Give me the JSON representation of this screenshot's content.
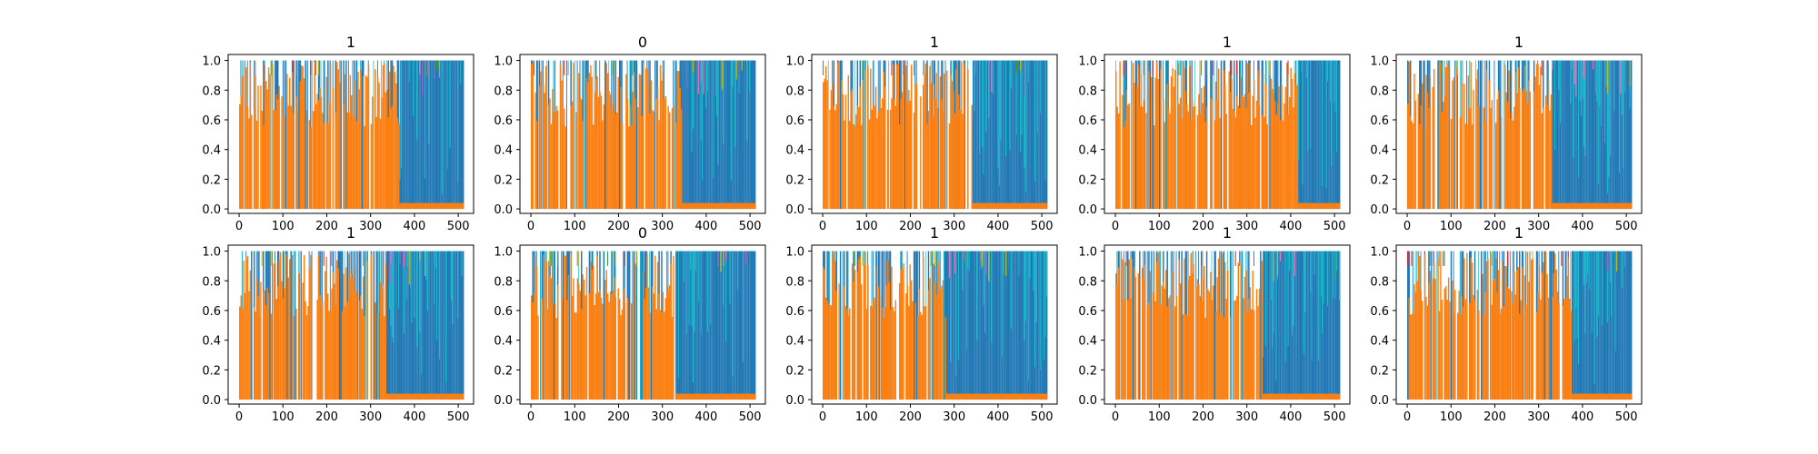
{
  "figure": {
    "rows": 2,
    "cols": 5,
    "colors": {
      "orange": "#ff7f0e",
      "blue": "#1f77b4",
      "cyan": "#17becf",
      "olive": "#bcbd22",
      "green": "#2ca02c",
      "purple": "#9467bd",
      "pink": "#e377c2",
      "red": "#d62728"
    }
  },
  "chart_data": [
    {
      "type": "area",
      "title": "1",
      "x_ticks": [
        0,
        100,
        200,
        300,
        400,
        500
      ],
      "y_ticks": [
        "0.0",
        "0.2",
        "0.4",
        "0.6",
        "0.8",
        "1.0"
      ],
      "xlim": [
        -25,
        535
      ],
      "ylim": [
        -0.03,
        1.04
      ],
      "x_range": [
        0,
        511
      ],
      "transition_x": 365,
      "series_summary": {
        "before_transition": {
          "name": "orange",
          "mean_value": 0.85
        },
        "after_transition": {
          "name": "blue",
          "mean_value": 0.85
        }
      }
    },
    {
      "type": "area",
      "title": "0",
      "x_ticks": [
        0,
        100,
        200,
        300,
        400,
        500
      ],
      "y_ticks": [
        "0.0",
        "0.2",
        "0.4",
        "0.6",
        "0.8",
        "1.0"
      ],
      "xlim": [
        -25,
        535
      ],
      "ylim": [
        -0.03,
        1.04
      ],
      "x_range": [
        0,
        511
      ],
      "transition_x": 345,
      "series_summary": {
        "before_transition": {
          "name": "orange",
          "mean_value": 0.8
        },
        "after_transition": {
          "name": "blue",
          "mean_value": 0.85
        }
      }
    },
    {
      "type": "area",
      "title": "1",
      "x_ticks": [
        0,
        100,
        200,
        300,
        400,
        500
      ],
      "y_ticks": [
        "0.0",
        "0.2",
        "0.4",
        "0.6",
        "0.8",
        "1.0"
      ],
      "xlim": [
        -25,
        535
      ],
      "ylim": [
        -0.03,
        1.04
      ],
      "x_range": [
        0,
        511
      ],
      "transition_x": 340,
      "series_summary": {
        "before_transition": {
          "name": "orange",
          "mean_value": 0.85
        },
        "after_transition": {
          "name": "blue",
          "mean_value": 0.8
        }
      }
    },
    {
      "type": "area",
      "title": "1",
      "x_ticks": [
        0,
        100,
        200,
        300,
        400,
        500
      ],
      "y_ticks": [
        "0.0",
        "0.2",
        "0.4",
        "0.6",
        "0.8",
        "1.0"
      ],
      "xlim": [
        -25,
        535
      ],
      "ylim": [
        -0.03,
        1.04
      ],
      "x_range": [
        0,
        511
      ],
      "transition_x": 415,
      "series_summary": {
        "before_transition": {
          "name": "orange",
          "mean_value": 0.75
        },
        "after_transition": {
          "name": "blue",
          "mean_value": 0.85
        }
      }
    },
    {
      "type": "area",
      "title": "1",
      "x_ticks": [
        0,
        100,
        200,
        300,
        400,
        500
      ],
      "y_ticks": [
        "0.0",
        "0.2",
        "0.4",
        "0.6",
        "0.8",
        "1.0"
      ],
      "xlim": [
        -25,
        535
      ],
      "ylim": [
        -0.03,
        1.04
      ],
      "x_range": [
        0,
        511
      ],
      "transition_x": 330,
      "series_summary": {
        "before_transition": {
          "name": "orange",
          "mean_value": 0.8
        },
        "after_transition": {
          "name": "blue",
          "mean_value": 0.85
        }
      }
    },
    {
      "type": "area",
      "title": "1",
      "x_ticks": [
        0,
        100,
        200,
        300,
        400,
        500
      ],
      "y_ticks": [
        "0.0",
        "0.2",
        "0.4",
        "0.6",
        "0.8",
        "1.0"
      ],
      "xlim": [
        -25,
        535
      ],
      "ylim": [
        -0.03,
        1.04
      ],
      "x_range": [
        0,
        511
      ],
      "transition_x": 335,
      "series_summary": {
        "before_transition": {
          "name": "orange",
          "mean_value": 0.8
        },
        "after_transition": {
          "name": "blue",
          "mean_value": 0.8
        }
      }
    },
    {
      "type": "area",
      "title": "0",
      "x_ticks": [
        0,
        100,
        200,
        300,
        400,
        500
      ],
      "y_ticks": [
        "0.0",
        "0.2",
        "0.4",
        "0.6",
        "0.8",
        "1.0"
      ],
      "xlim": [
        -25,
        535
      ],
      "ylim": [
        -0.03,
        1.04
      ],
      "x_range": [
        0,
        511
      ],
      "transition_x": 330,
      "series_summary": {
        "before_transition": {
          "name": "orange",
          "mean_value": 0.85
        },
        "after_transition": {
          "name": "blue",
          "mean_value": 0.8
        }
      }
    },
    {
      "type": "area",
      "title": "1",
      "x_ticks": [
        0,
        100,
        200,
        300,
        400,
        500
      ],
      "y_ticks": [
        "0.0",
        "0.2",
        "0.4",
        "0.6",
        "0.8",
        "1.0"
      ],
      "xlim": [
        -25,
        535
      ],
      "ylim": [
        -0.03,
        1.04
      ],
      "x_range": [
        0,
        511
      ],
      "transition_x": 280,
      "series_summary": {
        "before_transition": {
          "name": "orange",
          "mean_value": 0.8
        },
        "after_transition": {
          "name": "blue",
          "mean_value": 0.8
        }
      }
    },
    {
      "type": "area",
      "title": "1",
      "x_ticks": [
        0,
        100,
        200,
        300,
        400,
        500
      ],
      "y_ticks": [
        "0.0",
        "0.2",
        "0.4",
        "0.6",
        "0.8",
        "1.0"
      ],
      "xlim": [
        -25,
        535
      ],
      "ylim": [
        -0.03,
        1.04
      ],
      "x_range": [
        0,
        511
      ],
      "transition_x": 335,
      "series_summary": {
        "before_transition": {
          "name": "orange",
          "mean_value": 0.85
        },
        "after_transition": {
          "name": "blue",
          "mean_value": 0.8
        }
      }
    },
    {
      "type": "area",
      "title": "1",
      "x_ticks": [
        0,
        100,
        200,
        300,
        400,
        500
      ],
      "y_ticks": [
        "0.0",
        "0.2",
        "0.4",
        "0.6",
        "0.8",
        "1.0"
      ],
      "xlim": [
        -25,
        535
      ],
      "ylim": [
        -0.03,
        1.04
      ],
      "x_range": [
        0,
        511
      ],
      "transition_x": 375,
      "series_summary": {
        "before_transition": {
          "name": "orange",
          "mean_value": 0.85
        },
        "after_transition": {
          "name": "blue",
          "mean_value": 0.8
        }
      }
    }
  ]
}
